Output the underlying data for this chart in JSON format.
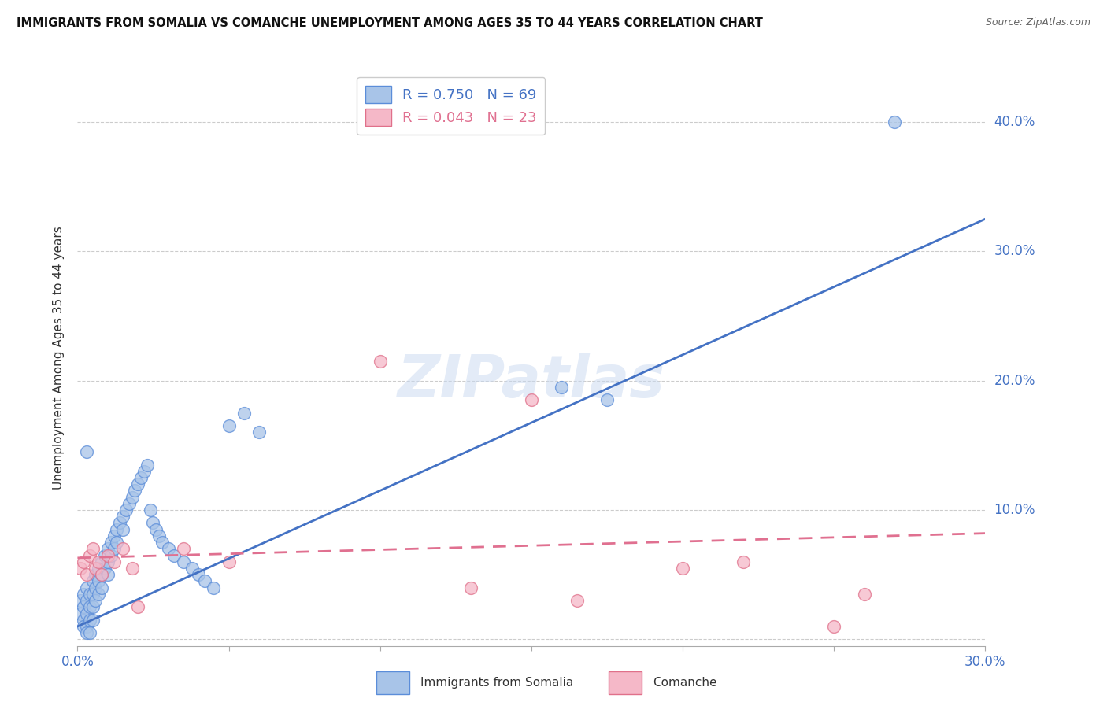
{
  "title": "IMMIGRANTS FROM SOMALIA VS COMANCHE UNEMPLOYMENT AMONG AGES 35 TO 44 YEARS CORRELATION CHART",
  "source": "Source: ZipAtlas.com",
  "ylabel": "Unemployment Among Ages 35 to 44 years",
  "xlim": [
    0,
    0.3
  ],
  "ylim": [
    -0.005,
    0.44
  ],
  "x_ticks": [
    0.0,
    0.05,
    0.1,
    0.15,
    0.2,
    0.25,
    0.3
  ],
  "y_ticks": [
    0.0,
    0.1,
    0.2,
    0.3,
    0.4
  ],
  "somalia_R": 0.75,
  "somalia_N": 69,
  "comanche_R": 0.043,
  "comanche_N": 23,
  "somalia_color": "#a8c4e8",
  "somalia_edge_color": "#5b8dd9",
  "comanche_color": "#f5b8c8",
  "comanche_edge_color": "#e0708a",
  "somalia_line_color": "#4472c4",
  "comanche_line_color": "#e07090",
  "somalia_x": [
    0.001,
    0.001,
    0.002,
    0.002,
    0.002,
    0.002,
    0.003,
    0.003,
    0.003,
    0.003,
    0.003,
    0.004,
    0.004,
    0.004,
    0.004,
    0.005,
    0.005,
    0.005,
    0.005,
    0.006,
    0.006,
    0.006,
    0.007,
    0.007,
    0.007,
    0.008,
    0.008,
    0.008,
    0.009,
    0.009,
    0.01,
    0.01,
    0.01,
    0.011,
    0.011,
    0.012,
    0.012,
    0.013,
    0.013,
    0.014,
    0.015,
    0.015,
    0.016,
    0.017,
    0.018,
    0.019,
    0.02,
    0.021,
    0.022,
    0.023,
    0.024,
    0.025,
    0.026,
    0.027,
    0.028,
    0.03,
    0.032,
    0.035,
    0.038,
    0.04,
    0.042,
    0.045,
    0.05,
    0.055,
    0.06,
    0.16,
    0.175,
    0.27,
    0.003
  ],
  "somalia_y": [
    0.03,
    0.02,
    0.035,
    0.025,
    0.015,
    0.01,
    0.04,
    0.03,
    0.02,
    0.01,
    0.005,
    0.035,
    0.025,
    0.015,
    0.005,
    0.045,
    0.035,
    0.025,
    0.015,
    0.05,
    0.04,
    0.03,
    0.055,
    0.045,
    0.035,
    0.06,
    0.05,
    0.04,
    0.065,
    0.055,
    0.07,
    0.06,
    0.05,
    0.075,
    0.065,
    0.08,
    0.07,
    0.085,
    0.075,
    0.09,
    0.095,
    0.085,
    0.1,
    0.105,
    0.11,
    0.115,
    0.12,
    0.125,
    0.13,
    0.135,
    0.1,
    0.09,
    0.085,
    0.08,
    0.075,
    0.07,
    0.065,
    0.06,
    0.055,
    0.05,
    0.045,
    0.04,
    0.165,
    0.175,
    0.16,
    0.195,
    0.185,
    0.4,
    0.145
  ],
  "comanche_x": [
    0.001,
    0.002,
    0.003,
    0.004,
    0.005,
    0.006,
    0.007,
    0.008,
    0.01,
    0.012,
    0.015,
    0.018,
    0.02,
    0.035,
    0.05,
    0.1,
    0.13,
    0.15,
    0.165,
    0.2,
    0.22,
    0.25,
    0.26
  ],
  "comanche_y": [
    0.055,
    0.06,
    0.05,
    0.065,
    0.07,
    0.055,
    0.06,
    0.05,
    0.065,
    0.06,
    0.07,
    0.055,
    0.025,
    0.07,
    0.06,
    0.215,
    0.04,
    0.185,
    0.03,
    0.055,
    0.06,
    0.01,
    0.035
  ],
  "somalia_trend_x": [
    0.0,
    0.3
  ],
  "somalia_trend_y": [
    0.01,
    0.325
  ],
  "comanche_trend_x": [
    0.0,
    0.3
  ],
  "comanche_trend_y": [
    0.063,
    0.082
  ]
}
